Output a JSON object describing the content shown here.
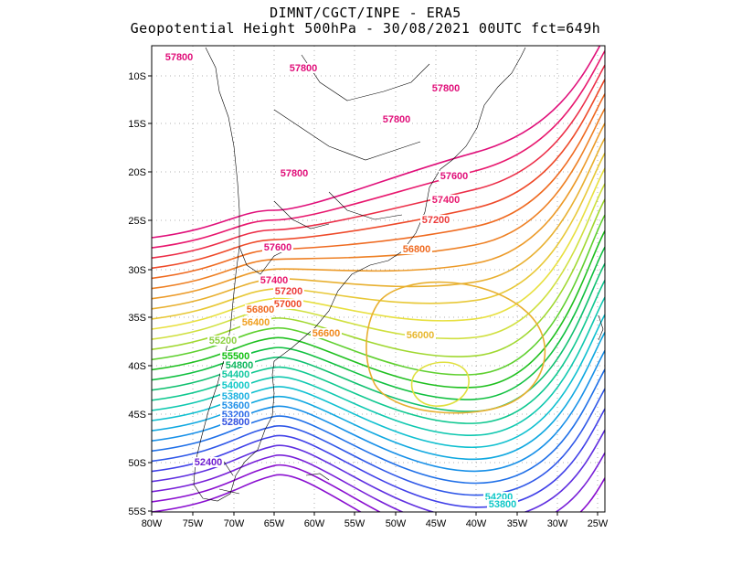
{
  "title": {
    "line1": "DIMNT/CGCT/INPE -  ERA5",
    "line2": "Geopotential Height 500hPa -  30/08/2021 00UTC fct=649h"
  },
  "axes": {
    "lon_labels": [
      "80W",
      "75W",
      "70W",
      "65W",
      "60W",
      "55W",
      "50W",
      "45W",
      "40W",
      "35W",
      "30W",
      "25W"
    ],
    "lat_labels": [
      "10S",
      "15S",
      "20S",
      "25S",
      "30S",
      "35S",
      "40S",
      "45S",
      "50S",
      "55S"
    ]
  },
  "contour_labels": [
    {
      "text": "57800",
      "color": "#e0107a"
    },
    {
      "text": "57800",
      "color": "#e0107a"
    },
    {
      "text": "57800",
      "color": "#e0107a"
    },
    {
      "text": "57800",
      "color": "#e0107a"
    },
    {
      "text": "57800",
      "color": "#e0107a"
    },
    {
      "text": "57600",
      "color": "#e0107a"
    },
    {
      "text": "57600",
      "color": "#e0107a"
    },
    {
      "text": "57400",
      "color": "#e8186e"
    },
    {
      "text": "57400",
      "color": "#e8186e"
    },
    {
      "text": "57200",
      "color": "#ec3a3a"
    },
    {
      "text": "57200",
      "color": "#ec3a3a"
    },
    {
      "text": "57000",
      "color": "#ee4a2a"
    },
    {
      "text": "56800",
      "color": "#ef6a20"
    },
    {
      "text": "56800",
      "color": "#ef6a20"
    },
    {
      "text": "56600",
      "color": "#f08a20"
    },
    {
      "text": "56400",
      "color": "#f0a020"
    },
    {
      "text": "56000",
      "color": "#e8b830"
    },
    {
      "text": "55200",
      "color": "#8cd040"
    },
    {
      "text": "55500",
      "color": "#10c010"
    },
    {
      "text": "54800",
      "color": "#10b860"
    },
    {
      "text": "54400",
      "color": "#10c8a0"
    },
    {
      "text": "54000",
      "color": "#10c8c8"
    },
    {
      "text": "53800",
      "color": "#18b0e0"
    },
    {
      "text": "53600",
      "color": "#2090e8"
    },
    {
      "text": "53200",
      "color": "#2868e8"
    },
    {
      "text": "52800",
      "color": "#3050e0"
    },
    {
      "text": "52400",
      "color": "#7020d0"
    },
    {
      "text": "54200",
      "color": "#10c8c8"
    },
    {
      "text": "53800",
      "color": "#10c8c8"
    }
  ],
  "contour_colors": [
    "#8a10d0",
    "#8a10d0",
    "#7820d8",
    "#6030e0",
    "#4040e8",
    "#3058e8",
    "#2070e8",
    "#1890e8",
    "#10a8e0",
    "#10c0d0",
    "#10c8b0",
    "#10c890",
    "#10c070",
    "#10c040",
    "#20c020",
    "#60d030",
    "#a0d830",
    "#d0e040",
    "#e8e040",
    "#e8c838",
    "#e8b030",
    "#ec9a28",
    "#ee8024",
    "#ef6a20",
    "#ee4a2a",
    "#ec2e48",
    "#e8186e",
    "#e0107a"
  ]
}
